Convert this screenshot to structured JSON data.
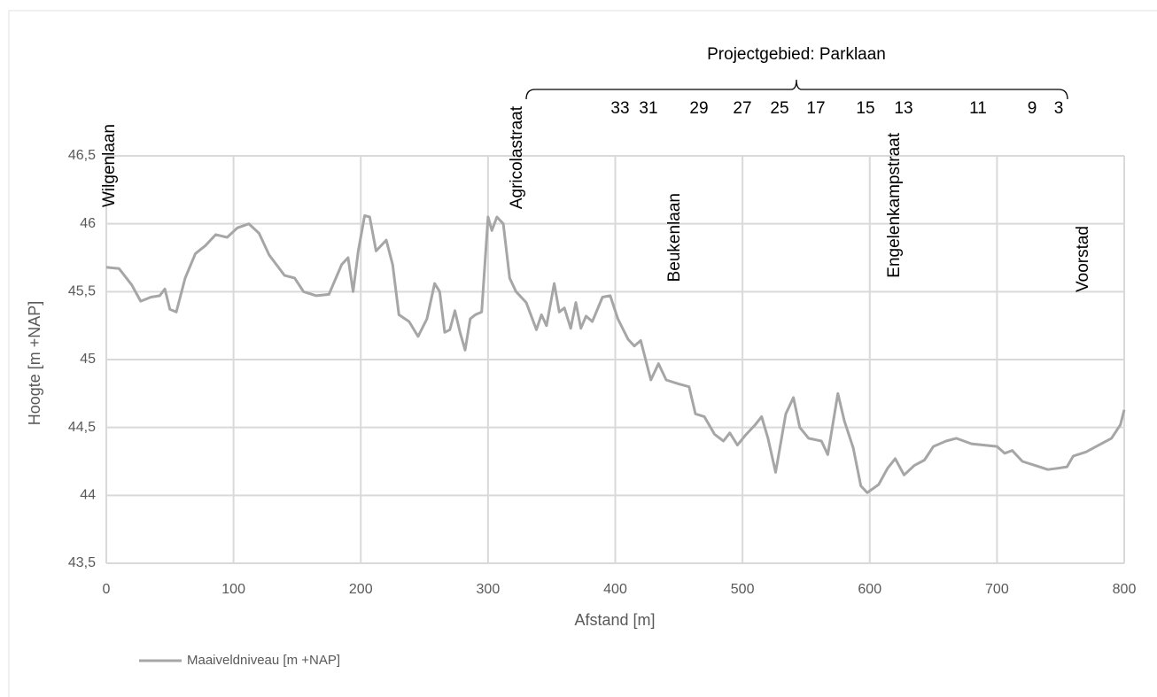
{
  "chart_data": {
    "type": "line",
    "x_label": "Afstand [m]",
    "y_label": "Hoogte [m +NAP]",
    "xlim": [
      0,
      800
    ],
    "xticks": [
      0,
      100,
      200,
      300,
      400,
      500,
      600,
      700,
      800
    ],
    "ylim": [
      43.5,
      46.5
    ],
    "yticks": [
      {
        "value": 43.5,
        "label": "43,5"
      },
      {
        "value": 44,
        "label": "44"
      },
      {
        "value": 44.5,
        "label": "44,5"
      },
      {
        "value": 45,
        "label": "45"
      },
      {
        "value": 45.5,
        "label": "45,5"
      },
      {
        "value": 46,
        "label": "46"
      },
      {
        "value": 46.5,
        "label": "46,5"
      }
    ],
    "grid": true,
    "legend": "bottom-left",
    "x": [
      0,
      10,
      20,
      27,
      35,
      42,
      46,
      50,
      55,
      62,
      70,
      78,
      86,
      95,
      103,
      112,
      120,
      128,
      140,
      148,
      155,
      165,
      175,
      185,
      190,
      194,
      198,
      203,
      207,
      212,
      220,
      225,
      230,
      238,
      245,
      252,
      258,
      262,
      266,
      270,
      274,
      278,
      282,
      286,
      290,
      295,
      300,
      303,
      307,
      312,
      317,
      322,
      330,
      338,
      342,
      346,
      352,
      356,
      360,
      365,
      369,
      373,
      377,
      382,
      390,
      396,
      402,
      410,
      415,
      420,
      428,
      434,
      440,
      450,
      458,
      463,
      470,
      478,
      485,
      490,
      496,
      502,
      510,
      515,
      520,
      526,
      534,
      540,
      545,
      552,
      562,
      567,
      575,
      580,
      587,
      593,
      598,
      607,
      614,
      620,
      627,
      635,
      643,
      650,
      660,
      668,
      680,
      690,
      700,
      706,
      712,
      720,
      730,
      740,
      748,
      755,
      760,
      770,
      780,
      790,
      797,
      800
    ],
    "series": [
      {
        "name": "Maaiveldniveau [m +NAP]",
        "color": "#a6a6a6",
        "values": [
          45.68,
          45.67,
          45.55,
          45.43,
          45.46,
          45.47,
          45.52,
          45.37,
          45.35,
          45.6,
          45.78,
          45.84,
          45.92,
          45.9,
          45.97,
          46.0,
          45.93,
          45.77,
          45.62,
          45.6,
          45.5,
          45.47,
          45.48,
          45.7,
          45.75,
          45.5,
          45.8,
          46.06,
          46.05,
          45.8,
          45.88,
          45.7,
          45.33,
          45.28,
          45.17,
          45.3,
          45.56,
          45.5,
          45.2,
          45.22,
          45.36,
          45.2,
          45.07,
          45.3,
          45.33,
          45.35,
          46.05,
          45.95,
          46.05,
          46.0,
          45.6,
          45.5,
          45.42,
          45.22,
          45.33,
          45.25,
          45.56,
          45.35,
          45.38,
          45.23,
          45.42,
          45.23,
          45.32,
          45.28,
          45.46,
          45.47,
          45.3,
          45.15,
          45.1,
          45.14,
          44.85,
          44.97,
          44.85,
          44.82,
          44.8,
          44.6,
          44.58,
          44.45,
          44.4,
          44.46,
          44.37,
          44.44,
          44.52,
          44.58,
          44.42,
          44.17,
          44.6,
          44.72,
          44.5,
          44.42,
          44.4,
          44.3,
          44.75,
          44.55,
          44.35,
          44.07,
          44.02,
          44.08,
          44.2,
          44.27,
          44.15,
          44.22,
          44.26,
          44.36,
          44.4,
          44.42,
          44.38,
          44.37,
          44.36,
          44.31,
          44.33,
          44.25,
          44.22,
          44.19,
          44.2,
          44.21,
          44.29,
          44.32,
          44.37,
          44.42,
          44.52,
          44.63
        ]
      }
    ],
    "streets": [
      "Wilgenlaan",
      "Agricolastraat",
      "Beukenlaan",
      "Engelenkampstraat",
      "Voorstad"
    ],
    "project_label": "Projectgebied: Parklaan",
    "house_numbers": [
      "33",
      "31",
      "29",
      "27",
      "25",
      "17",
      "15",
      "13",
      "11",
      "9",
      "3"
    ]
  }
}
